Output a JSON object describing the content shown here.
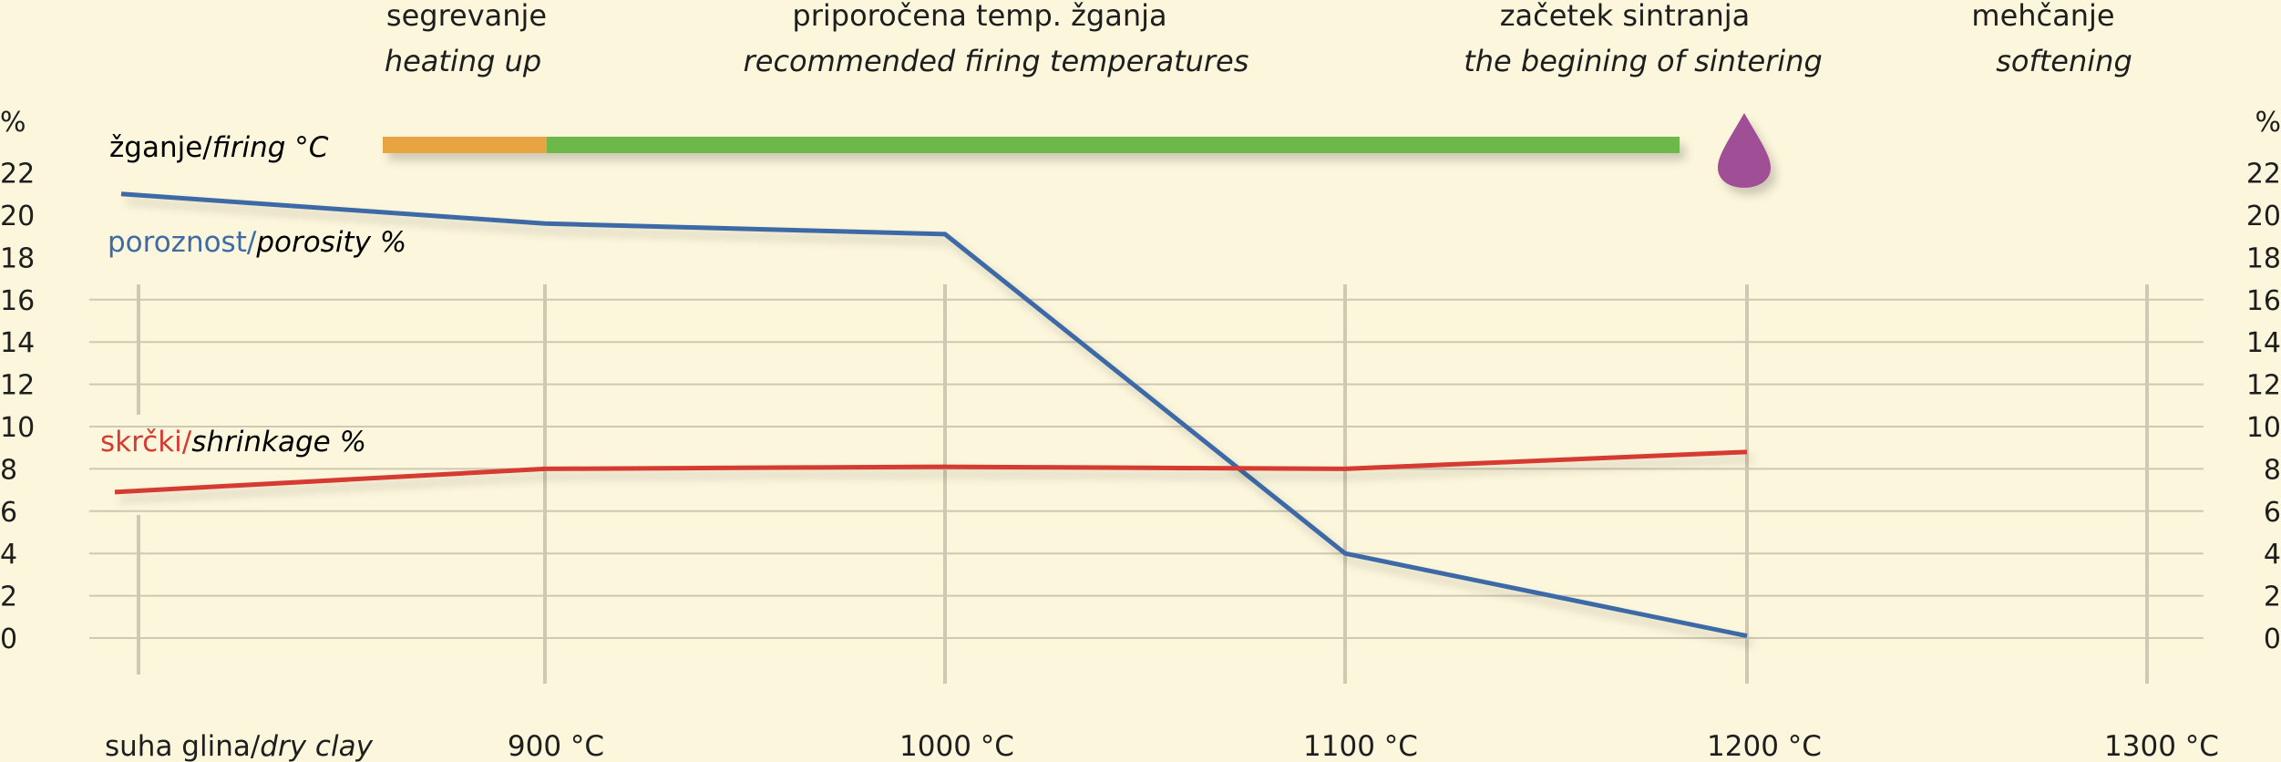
{
  "stages": [
    {
      "top": "segrevanje",
      "bottom": "heating up"
    },
    {
      "top": "priporočena temp. žganja",
      "bottom": "recommended firing temperatures"
    },
    {
      "top": "začetek sintranja",
      "bottom": "the begining of sintering"
    },
    {
      "top": "mehčanje",
      "bottom": "softening"
    }
  ],
  "labels": {
    "firing": {
      "main": "žganje/",
      "italic": "firing °C"
    },
    "porosity": {
      "main": "poroznost/",
      "italic": "porosity %"
    },
    "shrinkage": {
      "main": "skrčki/",
      "italic": "shrinkage %"
    },
    "dry_clay": {
      "main": "suha glina/",
      "italic": "dry clay"
    }
  },
  "colors": {
    "background": "#fcf6dc",
    "grid": "#cfc8b2",
    "porosity": "#3e6aa6",
    "shrinkage": "#d63a33",
    "heating_bar": "#e7a43f",
    "firing_bar": "#6db84c",
    "softening_drop": "#a04f96",
    "porosity_label": "#3e6aa6",
    "shrinkage_label": "#d63a33"
  },
  "chart_data": {
    "type": "line",
    "x": [
      "dry clay",
      900,
      1000,
      1100,
      1200,
      1300
    ],
    "x_tick_labels": [
      "suha glina/dry clay",
      "900 °C",
      "1000 °C",
      "1100 °C",
      "1200 °C",
      "1300 °C"
    ],
    "y_unit": "%",
    "y_ticks": [
      0,
      2,
      4,
      6,
      8,
      10,
      12,
      14,
      16,
      18,
      20,
      22
    ],
    "ylim": [
      0,
      22
    ],
    "series": [
      {
        "name": "poroznost/porosity %",
        "points": [
          [
            "dry clay",
            21
          ],
          [
            900,
            19.6
          ],
          [
            1000,
            19.1
          ],
          [
            1100,
            4
          ],
          [
            1200,
            0.1
          ]
        ]
      },
      {
        "name": "skrčki/shrinkage %",
        "points": [
          [
            "dry clay",
            6.9
          ],
          [
            900,
            8
          ],
          [
            1000,
            8.1
          ],
          [
            1100,
            8
          ],
          [
            1200,
            8.8
          ]
        ]
      }
    ],
    "firing_bar": {
      "heating_up": [
        850,
        900
      ],
      "recommended": [
        900,
        1190
      ],
      "softening_marker": 1200
    },
    "grid": true
  }
}
